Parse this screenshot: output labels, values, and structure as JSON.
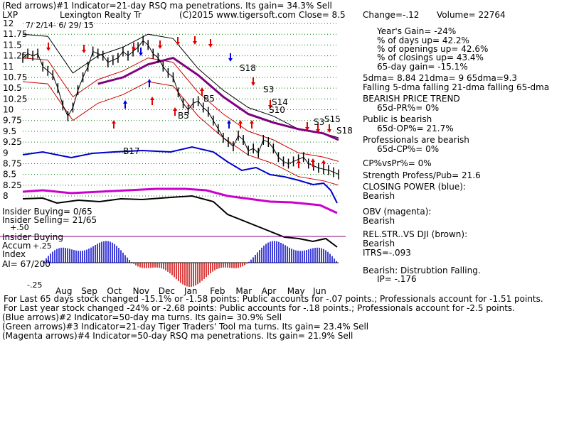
{
  "header": {
    "line1": "(Red arrows)#1 Indicator=21-day RSQ ma penetrations. Its gain= 34.3% Sell",
    "symbol": "LXP",
    "company": "Lexington Realty Tr",
    "source": "(C)2015 www.tigersoft.com",
    "close": "Close=  8.5",
    "change": "Change=-.12",
    "volume": "Volume= 22764",
    "date_range": "7/ 2/14- 6/ 29/ 15"
  },
  "right_panel": {
    "years_gain": "Year's Gain= -24%",
    "days_up": "% of days up= 42.2%",
    "openings_up": "% of openings up= 42.6%",
    "closings_up": "% of closings up= 43.4%",
    "day65_gain": "65-day gain= -15.1%",
    "dma": "5dma= 8.84  21dma= 9  65dma=9.3",
    "falling": "Falling 5-dma  falling 21-dma  falling 65-dma",
    "trend_title": "BEARISH PRICE TREND",
    "pr": "65d-PR%= 0%",
    "public_title": "Public is bearish",
    "op": "65d-OP%= 21.7%",
    "pro_title": "Professionals are bearish",
    "cp": "65d-CP%= 0%",
    "cpvspr": "CP%vsPr%=  0%",
    "strength": "Strength Profess/Pub= 21.6",
    "cp_title": "CLOSING POWER (blue):",
    "cp_val": "Bearish",
    "obv_title": "OBV (magenta):",
    "obv_val": "Bearish",
    "rel_title": "REL.STR..VS DJI (brown):",
    "rel_val": "Bearish",
    "itrs": "ITRS=-.093",
    "bearish": "Bearish: Distrubtion Falling.",
    "ip": "IP= -.176"
  },
  "left_labels": {
    "insider_buying": "Insider Buying= 0/65",
    "insider_selling": "Insider Selling= 21/65",
    "insider_buying2": "Insider Buying",
    "accum": "Accum",
    "index": "Index",
    "ai": "AI= 67/200",
    "plus50": "+.50",
    "plus25": "+.25",
    "minus25": "-.25"
  },
  "bottom": {
    "line1": "For Last 65 days stock changed -15.1% or -1.58 points:  Public accounts for -.07 points.;  Professionals account for -1.51 points.",
    "line2": "For Last year stock changed -24% or -2.68 points:  Public accounts for -.18 points.;  Professionals account for -2.5 points.",
    "line3": "(Blue arrows)#2 Indicator=50-day ma turns. Its gain= 30.9% Sell",
    "line4": "(Green arrows)#3 Indicator=21-day Tiger Traders' Tool ma turns. Its gain= 23.4% Sell",
    "line5": "(Magenta arrows)#4 Indicator=50-day RSQ ma penetrations. Its gain= 21.9% Sell"
  },
  "signals": {
    "b17": "B17",
    "b5a": "B5",
    "b5b": "B5",
    "s18a": "S18",
    "s3a": "S3",
    "s14": "S14",
    "s10": "S10",
    "s3b": "S3",
    "s15": "S15",
    "s18b": "S18"
  },
  "colors": {
    "price": "#000000",
    "ma_red": "#cc0000",
    "ma_purple": "#800080",
    "closing_power": "#0000cc",
    "obv": "#cc00cc",
    "rel_str": "#000000",
    "accum_pos": "#0000cc",
    "accum_neg": "#cc0000",
    "grid": "#008000"
  },
  "chart_data": {
    "type": "line",
    "title": "Lexington Realty Tr",
    "y_ticks": [
      "12",
      "11.75",
      "11.5",
      "11.25",
      "11",
      "10.75",
      "10.5",
      "10.25",
      "10",
      "9.75",
      "9.5",
      "9.25",
      "9",
      "8.75",
      "8.5",
      "8.25",
      "8"
    ],
    "ylim": [
      8,
      12
    ],
    "x_ticks": [
      "Aug",
      "Sep",
      "Oct",
      "Nov",
      "Dec",
      "Jan",
      "Feb",
      "Mar",
      "Apr",
      "May",
      "Jun"
    ],
    "series": [
      {
        "name": "Price",
        "x": [
          0,
          4,
          8,
          12,
          16,
          20,
          24,
          28,
          32,
          36,
          40,
          44,
          48,
          52,
          56,
          60,
          64,
          68,
          72,
          76,
          80,
          84,
          88,
          92,
          96,
          100,
          104,
          108,
          112,
          116,
          120,
          124,
          128,
          132,
          136,
          140,
          144,
          148,
          152,
          156,
          160,
          164,
          168,
          172,
          176,
          180,
          184,
          188,
          192,
          196,
          200,
          204,
          208,
          212,
          216,
          220,
          224,
          228,
          232,
          236,
          240,
          244,
          248,
          252
        ],
        "values": [
          11.2,
          11.3,
          11.25,
          11.3,
          11.0,
          10.9,
          10.8,
          10.5,
          10.1,
          9.85,
          10.05,
          10.45,
          10.75,
          11.0,
          11.35,
          11.3,
          11.25,
          11.1,
          11.15,
          11.2,
          11.35,
          11.25,
          11.35,
          11.45,
          11.6,
          11.5,
          11.3,
          11.2,
          11.0,
          10.85,
          10.75,
          10.4,
          10.15,
          10.0,
          10.15,
          10.2,
          10.05,
          9.95,
          9.75,
          9.55,
          9.35,
          9.25,
          9.15,
          9.4,
          9.3,
          9.05,
          9.1,
          9.0,
          9.3,
          9.25,
          9.1,
          8.9,
          8.8,
          8.75,
          8.8,
          8.85,
          8.9,
          8.75,
          8.7,
          8.65,
          8.62,
          8.6,
          8.55,
          8.5
        ]
      },
      {
        "name": "21-dma",
        "x": [
          0,
          20,
          40,
          60,
          80,
          100,
          120,
          140,
          160,
          180,
          200,
          220,
          240,
          252
        ],
        "values": [
          11.2,
          11.15,
          10.3,
          10.7,
          10.9,
          11.2,
          11.1,
          10.4,
          9.9,
          9.5,
          9.3,
          9.0,
          8.9,
          8.8
        ]
      },
      {
        "name": "65-dma",
        "x": [
          60,
          80,
          100,
          120,
          140,
          160,
          180,
          200,
          220,
          240,
          252
        ],
        "values": [
          10.6,
          10.75,
          11.05,
          11.2,
          10.8,
          10.3,
          9.9,
          9.7,
          9.55,
          9.45,
          9.3
        ]
      }
    ]
  }
}
